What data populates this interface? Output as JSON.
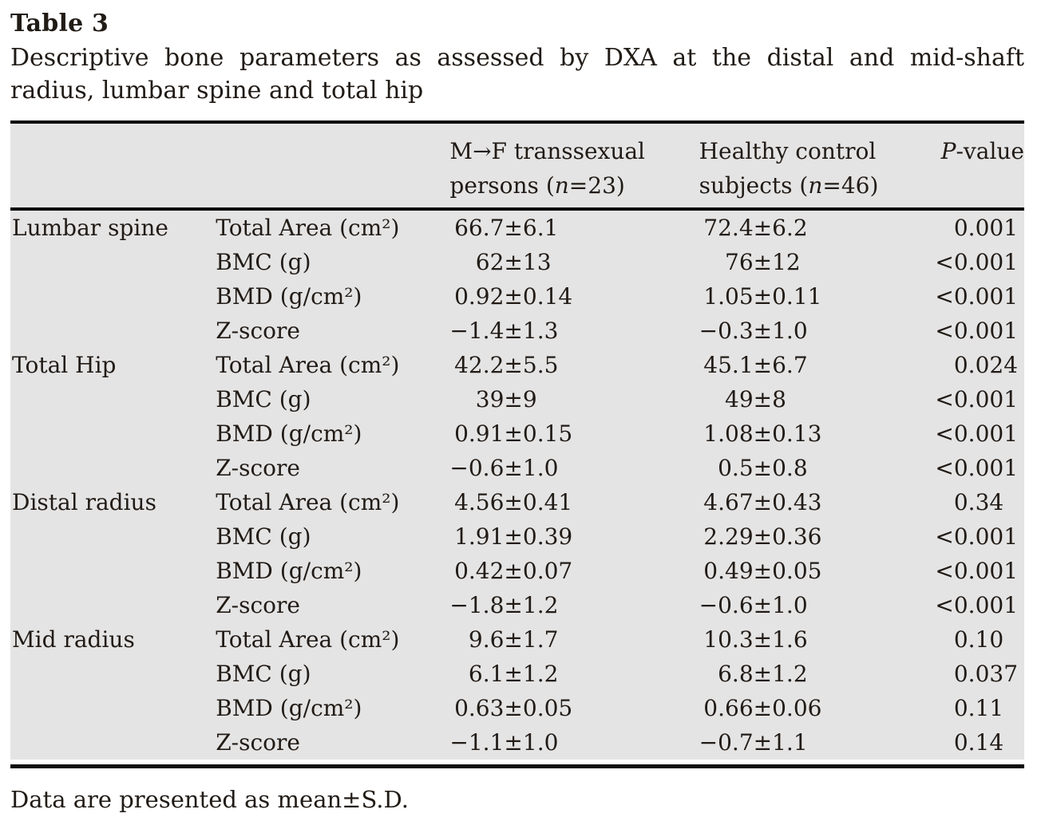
{
  "header": {
    "label": "Table 3",
    "caption": "Descriptive bone parameters as assessed by DXA at the distal and mid-shaft radius, lumbar spine and total hip"
  },
  "table": {
    "column_headers": [
      "",
      "",
      "M→F transsexual\npersons (*n*=23)",
      "Healthy control\nsubjects (*n*=46)",
      "*P*-value"
    ],
    "groups": [
      {
        "label": "Lumbar spine",
        "rows": [
          {
            "param": "Total Area (cm²)",
            "mf": "66.7±6.1",
            "hc": "72.4±6.2",
            "p": "0.001"
          },
          {
            "param": "BMC (g)",
            "mf": "62±13",
            "hc": "76±12",
            "p": "<0.001"
          },
          {
            "param": "BMD (g/cm²)",
            "mf": "0.92±0.14",
            "hc": "1.05±0.11",
            "p": "<0.001"
          },
          {
            "param": "Z-score",
            "mf": "−1.4±1.3",
            "hc": "−0.3±1.0",
            "p": "<0.001"
          }
        ]
      },
      {
        "label": "Total Hip",
        "rows": [
          {
            "param": "Total Area (cm²)",
            "mf": "42.2±5.5",
            "hc": "45.1±6.7",
            "p": "0.024"
          },
          {
            "param": "BMC (g)",
            "mf": "39±9",
            "hc": "49±8",
            "p": "<0.001"
          },
          {
            "param": "BMD (g/cm²)",
            "mf": "0.91±0.15",
            "hc": "1.08±0.13",
            "p": "<0.001"
          },
          {
            "param": "Z-score",
            "mf": "−0.6±1.0",
            "hc": "0.5±0.8",
            "p": "<0.001"
          }
        ]
      },
      {
        "label": "Distal radius",
        "rows": [
          {
            "param": "Total Area (cm²)",
            "mf": "4.56±0.41",
            "hc": "4.67±0.43",
            "p": "0.34"
          },
          {
            "param": "BMC (g)",
            "mf": "1.91±0.39",
            "hc": "2.29±0.36",
            "p": "<0.001"
          },
          {
            "param": "BMD (g/cm²)",
            "mf": "0.42±0.07",
            "hc": "0.49±0.05",
            "p": "<0.001"
          },
          {
            "param": "Z-score",
            "mf": "−1.8±1.2",
            "hc": "−0.6±1.0",
            "p": "<0.001"
          }
        ]
      },
      {
        "label": "Mid radius",
        "rows": [
          {
            "param": "Total Area (cm²)",
            "mf": "9.6±1.7",
            "hc": "10.3±1.6",
            "p": "0.10"
          },
          {
            "param": "BMC (g)",
            "mf": "6.1±1.2",
            "hc": "6.8±1.2",
            "p": "0.037"
          },
          {
            "param": "BMD (g/cm²)",
            "mf": "0.63±0.05",
            "hc": "0.66±0.06",
            "p": "0.11"
          },
          {
            "param": "Z-score",
            "mf": "−1.1±1.0",
            "hc": "−0.7±1.1",
            "p": "0.14"
          }
        ]
      }
    ]
  },
  "footnote": "Data are presented as mean±S.D.",
  "colors": {
    "table_background": "#e5e4e4",
    "rule": "#0c0c0c",
    "text": "#211b16",
    "page_background": "#ffffff"
  }
}
